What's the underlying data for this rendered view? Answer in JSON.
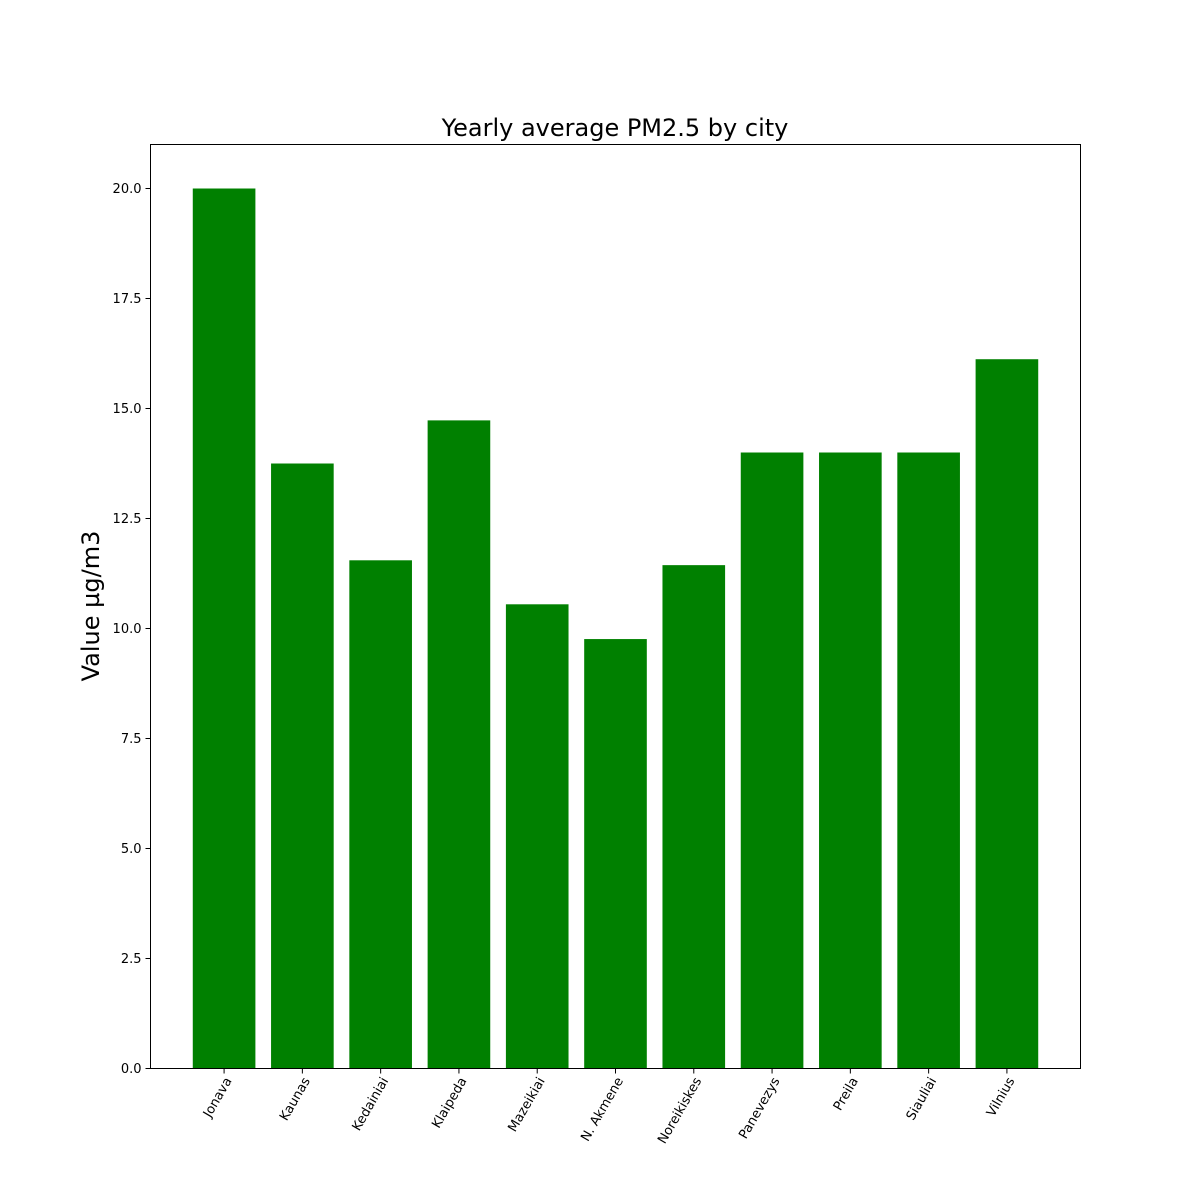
{
  "chart_data": {
    "type": "bar",
    "title": "Yearly average PM2.5 by city",
    "xlabel": "",
    "ylabel": "Value µg/m3",
    "categories": [
      "Jonava",
      "Kaunas",
      "Kedainiai",
      "Klaipeda",
      "Mazeikiai",
      "N. Akmene",
      "Noreikiskes",
      "Panevezys",
      "Preila",
      "Siauliai",
      "Vilnius"
    ],
    "values": [
      20.0,
      13.75,
      11.55,
      14.73,
      10.55,
      9.76,
      11.44,
      14.0,
      14.0,
      14.0,
      16.12
    ],
    "ylim": [
      0,
      21
    ],
    "yticks": [
      "0.0",
      "2.5",
      "5.0",
      "7.5",
      "10.0",
      "12.5",
      "15.0",
      "17.5",
      "20.0"
    ],
    "bar_color": "#008000",
    "grid": false,
    "legend": "none"
  }
}
